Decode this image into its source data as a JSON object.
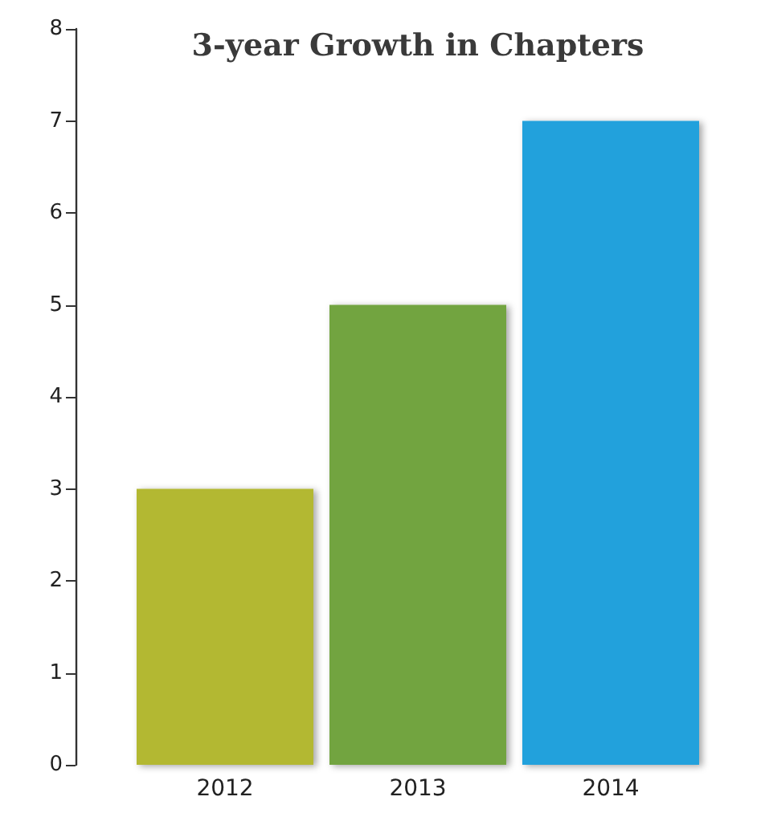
{
  "chart_data": {
    "type": "bar",
    "title": "3-year Growth in Chapters",
    "categories": [
      "2012",
      "2013",
      "2014"
    ],
    "values": [
      3,
      5,
      7
    ],
    "colors": [
      "#b3b833",
      "#72a43f",
      "#23a1dc"
    ],
    "ylim": [
      0,
      8
    ],
    "yticks": [
      0,
      1,
      2,
      3,
      4,
      5,
      6,
      7,
      8
    ],
    "grid": false
  }
}
